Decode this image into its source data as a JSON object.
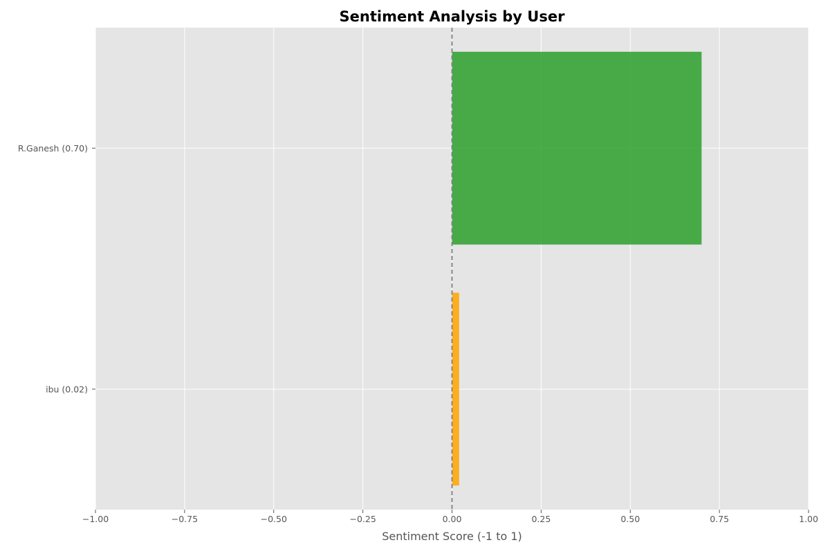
{
  "chart_data": {
    "type": "bar",
    "orientation": "horizontal",
    "title": "Sentiment Analysis by User",
    "xlabel": "Sentiment Score (-1 to 1)",
    "ylabel": "",
    "xlim": [
      -1.0,
      1.0
    ],
    "grid": true,
    "legend": "none",
    "reference_line": {
      "x": 0,
      "style": "dashed",
      "color": "#808080"
    },
    "categories": [
      "R.Ganesh (0.70)",
      "ibu (0.02)"
    ],
    "values": [
      0.7,
      0.02
    ],
    "bar_colors": [
      "#2ca02c",
      "#ffa500"
    ],
    "x_ticks": [
      -1.0,
      -0.75,
      -0.5,
      -0.25,
      0.0,
      0.25,
      0.5,
      0.75,
      1.0
    ],
    "x_tick_labels": [
      "−1.00",
      "−0.75",
      "−0.50",
      "−0.25",
      "0.00",
      "0.25",
      "0.50",
      "0.75",
      "1.00"
    ]
  },
  "colors": {
    "plot_background": "#e5e5e5",
    "grid": "#ffffff",
    "text": "#555555",
    "title": "#000000"
  }
}
